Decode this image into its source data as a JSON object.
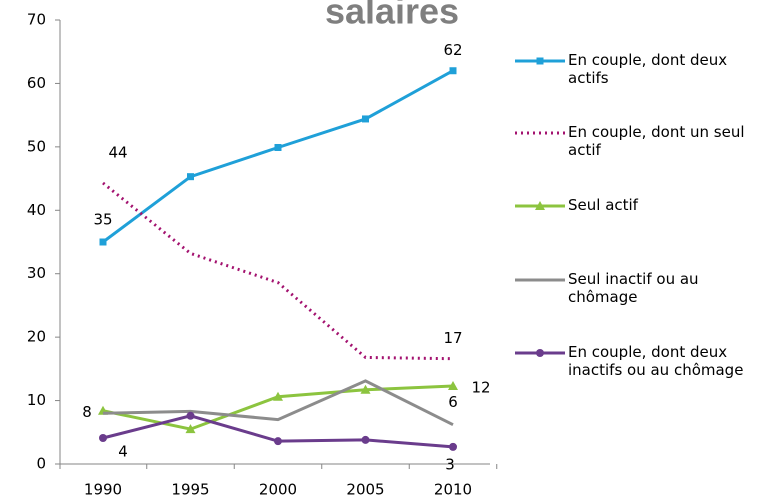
{
  "chart_data": {
    "type": "line",
    "title": "salaires",
    "categories": [
      "1990",
      "1995",
      "2000",
      "2005",
      "2010"
    ],
    "series": [
      {
        "name": "En couple, dont deux actifs",
        "color": "#1fa0d8",
        "marker": "square",
        "values": [
          35,
          45.3,
          49.9,
          54.4,
          62
        ],
        "value_labels": [
          "35",
          null,
          null,
          null,
          "62"
        ]
      },
      {
        "name": "En couple, dont un seul actif",
        "color": "#a3126f",
        "marker": "none",
        "dash": true,
        "values": [
          44.3,
          33.2,
          28.6,
          16.8,
          16.6
        ],
        "value_labels": [
          "44",
          null,
          null,
          null,
          "17"
        ]
      },
      {
        "name": "Seul actif",
        "color": "#8cc43f",
        "marker": "triangle",
        "values": [
          8.4,
          5.5,
          10.6,
          11.7,
          12.3
        ],
        "value_labels": [
          "8",
          null,
          null,
          null,
          "12"
        ]
      },
      {
        "name": "Seul inactif ou au chômage",
        "color": "#8c8c8c",
        "marker": "none",
        "values": [
          8.0,
          8.3,
          7.0,
          13.1,
          6.2
        ],
        "value_labels": [
          null,
          null,
          null,
          null,
          "6"
        ]
      },
      {
        "name": "En couple, dont deux inactifs ou au chômage",
        "color": "#6a3c8c",
        "marker": "circle",
        "values": [
          4.1,
          7.6,
          3.6,
          3.8,
          2.7
        ],
        "value_labels": [
          "4",
          null,
          null,
          null,
          "3"
        ]
      }
    ],
    "ylim": [
      0,
      70
    ],
    "yticks": [
      0,
      10,
      20,
      30,
      40,
      50,
      60,
      70
    ],
    "grid": false,
    "legend": "right"
  }
}
